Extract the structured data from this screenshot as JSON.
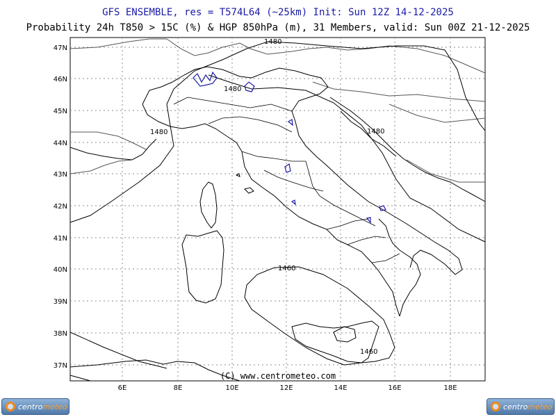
{
  "header": {
    "line1": "GFS ENSEMBLE, res = T574L64 (~25km)   Init: Sun 12Z 14-12-2025",
    "line2": "Probability 24h T850 > 15C (%) & HGP 850hPa (m), 31 Members, valid: Sun 00Z 21-12-2025"
  },
  "map": {
    "lat_labels": [
      "47N",
      "46N",
      "45N",
      "44N",
      "43N",
      "42N",
      "41N",
      "40N",
      "39N",
      "38N",
      "37N"
    ],
    "lon_labels": [
      "6E",
      "8E",
      "10E",
      "12E",
      "14E",
      "16E",
      "18E"
    ],
    "contour_labels": [
      "1480",
      "1480",
      "1480",
      "1480",
      "1460",
      "1460"
    ],
    "copyright": "(C) www.centrometeo.com",
    "colors": {
      "coast": "#000000",
      "border": "#555555",
      "contour": "#000000",
      "prob": "#1a1aa6",
      "grid": "#888888"
    }
  },
  "logos": {
    "left": {
      "a": "centro",
      "b": "meteo",
      "icon": "centrometeo-logo-icon"
    },
    "right": {
      "a": "centro",
      "b": "meteo",
      "icon": "centrometeo-logo-icon"
    }
  }
}
